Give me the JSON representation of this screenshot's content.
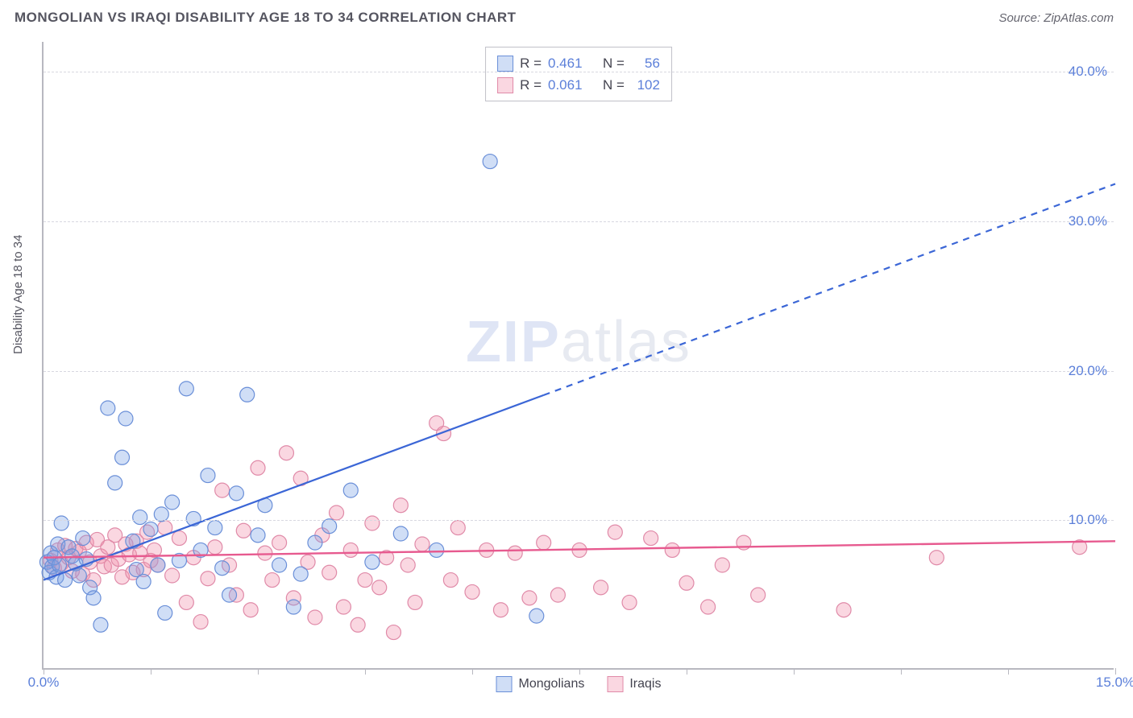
{
  "header": {
    "title": "MONGOLIAN VS IRAQI DISABILITY AGE 18 TO 34 CORRELATION CHART",
    "source": "Source: ZipAtlas.com"
  },
  "watermark": {
    "zip": "ZIP",
    "atlas": "atlas"
  },
  "chart": {
    "type": "scatter",
    "ylabel": "Disability Age 18 to 34",
    "xlim": [
      0,
      15
    ],
    "ylim": [
      0,
      42
    ],
    "x_ticks": [
      0,
      1.5,
      3,
      4.5,
      6,
      7.5,
      9,
      10.5,
      12,
      13.5,
      15
    ],
    "x_tick_labels": {
      "0": "0.0%",
      "15": "15.0%"
    },
    "y_grid": [
      10,
      20,
      30,
      40
    ],
    "y_tick_labels": {
      "10": "10.0%",
      "20": "20.0%",
      "30": "30.0%",
      "40": "40.0%"
    },
    "background_color": "#ffffff",
    "grid_color": "#d8d8e0",
    "axis_color": "#b8b8c0",
    "tick_label_color": "#5b7fd9",
    "marker_radius": 9,
    "marker_stroke_width": 1.2,
    "series": [
      {
        "name": "Mongolians",
        "fill": "rgba(120,160,230,0.35)",
        "stroke": "#6a8fd8",
        "R": "0.461",
        "N": "56",
        "trend": {
          "x1": 0,
          "y1": 6.0,
          "x2": 15,
          "y2": 32.5,
          "solid_until_x": 7.0,
          "color": "#3b66d6",
          "width": 2.2
        },
        "points": [
          [
            0.05,
            7.2
          ],
          [
            0.08,
            6.5
          ],
          [
            0.1,
            7.8
          ],
          [
            0.12,
            6.9
          ],
          [
            0.15,
            7.5
          ],
          [
            0.18,
            6.2
          ],
          [
            0.2,
            8.4
          ],
          [
            0.22,
            7.0
          ],
          [
            0.25,
            9.8
          ],
          [
            0.3,
            6.0
          ],
          [
            0.35,
            8.2
          ],
          [
            0.4,
            7.6
          ],
          [
            0.45,
            7.1
          ],
          [
            0.5,
            6.3
          ],
          [
            0.55,
            8.8
          ],
          [
            0.6,
            7.4
          ],
          [
            0.65,
            5.5
          ],
          [
            0.7,
            4.8
          ],
          [
            0.8,
            3.0
          ],
          [
            0.9,
            17.5
          ],
          [
            1.0,
            12.5
          ],
          [
            1.1,
            14.2
          ],
          [
            1.15,
            16.8
          ],
          [
            1.25,
            8.6
          ],
          [
            1.3,
            6.7
          ],
          [
            1.35,
            10.2
          ],
          [
            1.4,
            5.9
          ],
          [
            1.5,
            9.4
          ],
          [
            1.6,
            7.0
          ],
          [
            1.65,
            10.4
          ],
          [
            1.7,
            3.8
          ],
          [
            1.8,
            11.2
          ],
          [
            1.9,
            7.3
          ],
          [
            2.0,
            18.8
          ],
          [
            2.1,
            10.1
          ],
          [
            2.2,
            8.0
          ],
          [
            2.3,
            13.0
          ],
          [
            2.4,
            9.5
          ],
          [
            2.5,
            6.8
          ],
          [
            2.6,
            5.0
          ],
          [
            2.7,
            11.8
          ],
          [
            2.85,
            18.4
          ],
          [
            3.0,
            9.0
          ],
          [
            3.1,
            11.0
          ],
          [
            3.3,
            7.0
          ],
          [
            3.5,
            4.2
          ],
          [
            3.6,
            6.4
          ],
          [
            3.8,
            8.5
          ],
          [
            4.0,
            9.6
          ],
          [
            4.3,
            12.0
          ],
          [
            4.6,
            7.2
          ],
          [
            5.0,
            9.1
          ],
          [
            5.5,
            8.0
          ],
          [
            6.9,
            3.6
          ],
          [
            6.25,
            34.0
          ]
        ]
      },
      {
        "name": "Iraqis",
        "fill": "rgba(240,140,170,0.35)",
        "stroke": "#e08aa8",
        "R": "0.061",
        "N": "102",
        "trend": {
          "x1": 0,
          "y1": 7.5,
          "x2": 15,
          "y2": 8.6,
          "solid_until_x": 15,
          "color": "#e75a8f",
          "width": 2.4
        },
        "points": [
          [
            0.1,
            7.3
          ],
          [
            0.15,
            6.8
          ],
          [
            0.2,
            8.0
          ],
          [
            0.25,
            7.1
          ],
          [
            0.3,
            8.3
          ],
          [
            0.35,
            7.5
          ],
          [
            0.4,
            6.6
          ],
          [
            0.45,
            8.1
          ],
          [
            0.5,
            7.9
          ],
          [
            0.55,
            6.4
          ],
          [
            0.6,
            8.5
          ],
          [
            0.65,
            7.2
          ],
          [
            0.7,
            6.0
          ],
          [
            0.75,
            8.7
          ],
          [
            0.8,
            7.6
          ],
          [
            0.85,
            6.9
          ],
          [
            0.9,
            8.2
          ],
          [
            0.95,
            7.0
          ],
          [
            1.0,
            9.0
          ],
          [
            1.05,
            7.4
          ],
          [
            1.1,
            6.2
          ],
          [
            1.15,
            8.4
          ],
          [
            1.2,
            7.7
          ],
          [
            1.25,
            6.5
          ],
          [
            1.3,
            8.6
          ],
          [
            1.35,
            7.8
          ],
          [
            1.4,
            6.7
          ],
          [
            1.45,
            9.2
          ],
          [
            1.5,
            7.3
          ],
          [
            1.55,
            8.0
          ],
          [
            1.6,
            7.0
          ],
          [
            1.7,
            9.5
          ],
          [
            1.8,
            6.3
          ],
          [
            1.9,
            8.8
          ],
          [
            2.0,
            4.5
          ],
          [
            2.1,
            7.5
          ],
          [
            2.2,
            3.2
          ],
          [
            2.3,
            6.1
          ],
          [
            2.4,
            8.2
          ],
          [
            2.5,
            12.0
          ],
          [
            2.6,
            7.0
          ],
          [
            2.7,
            5.0
          ],
          [
            2.8,
            9.3
          ],
          [
            2.9,
            4.0
          ],
          [
            3.0,
            13.5
          ],
          [
            3.1,
            7.8
          ],
          [
            3.2,
            6.0
          ],
          [
            3.3,
            8.5
          ],
          [
            3.4,
            14.5
          ],
          [
            3.5,
            4.8
          ],
          [
            3.6,
            12.8
          ],
          [
            3.7,
            7.2
          ],
          [
            3.8,
            3.5
          ],
          [
            3.9,
            9.0
          ],
          [
            4.0,
            6.5
          ],
          [
            4.1,
            10.5
          ],
          [
            4.2,
            4.2
          ],
          [
            4.3,
            8.0
          ],
          [
            4.4,
            3.0
          ],
          [
            4.5,
            6.0
          ],
          [
            4.6,
            9.8
          ],
          [
            4.7,
            5.5
          ],
          [
            4.8,
            7.5
          ],
          [
            4.9,
            2.5
          ],
          [
            5.0,
            11.0
          ],
          [
            5.1,
            7.0
          ],
          [
            5.2,
            4.5
          ],
          [
            5.3,
            8.4
          ],
          [
            5.5,
            16.5
          ],
          [
            5.6,
            15.8
          ],
          [
            5.7,
            6.0
          ],
          [
            5.8,
            9.5
          ],
          [
            6.0,
            5.2
          ],
          [
            6.2,
            8.0
          ],
          [
            6.4,
            4.0
          ],
          [
            6.6,
            7.8
          ],
          [
            6.8,
            4.8
          ],
          [
            7.0,
            8.5
          ],
          [
            7.2,
            5.0
          ],
          [
            7.5,
            8.0
          ],
          [
            7.8,
            5.5
          ],
          [
            8.0,
            9.2
          ],
          [
            8.2,
            4.5
          ],
          [
            8.5,
            8.8
          ],
          [
            8.8,
            8.0
          ],
          [
            9.0,
            5.8
          ],
          [
            9.3,
            4.2
          ],
          [
            9.5,
            7.0
          ],
          [
            9.8,
            8.5
          ],
          [
            10.0,
            5.0
          ],
          [
            11.2,
            4.0
          ],
          [
            12.5,
            7.5
          ],
          [
            14.5,
            8.2
          ]
        ]
      }
    ]
  },
  "legend_top": {
    "r_label": "R =",
    "n_label": "N ="
  },
  "legend_bottom": {
    "items": [
      "Mongolians",
      "Iraqis"
    ]
  }
}
